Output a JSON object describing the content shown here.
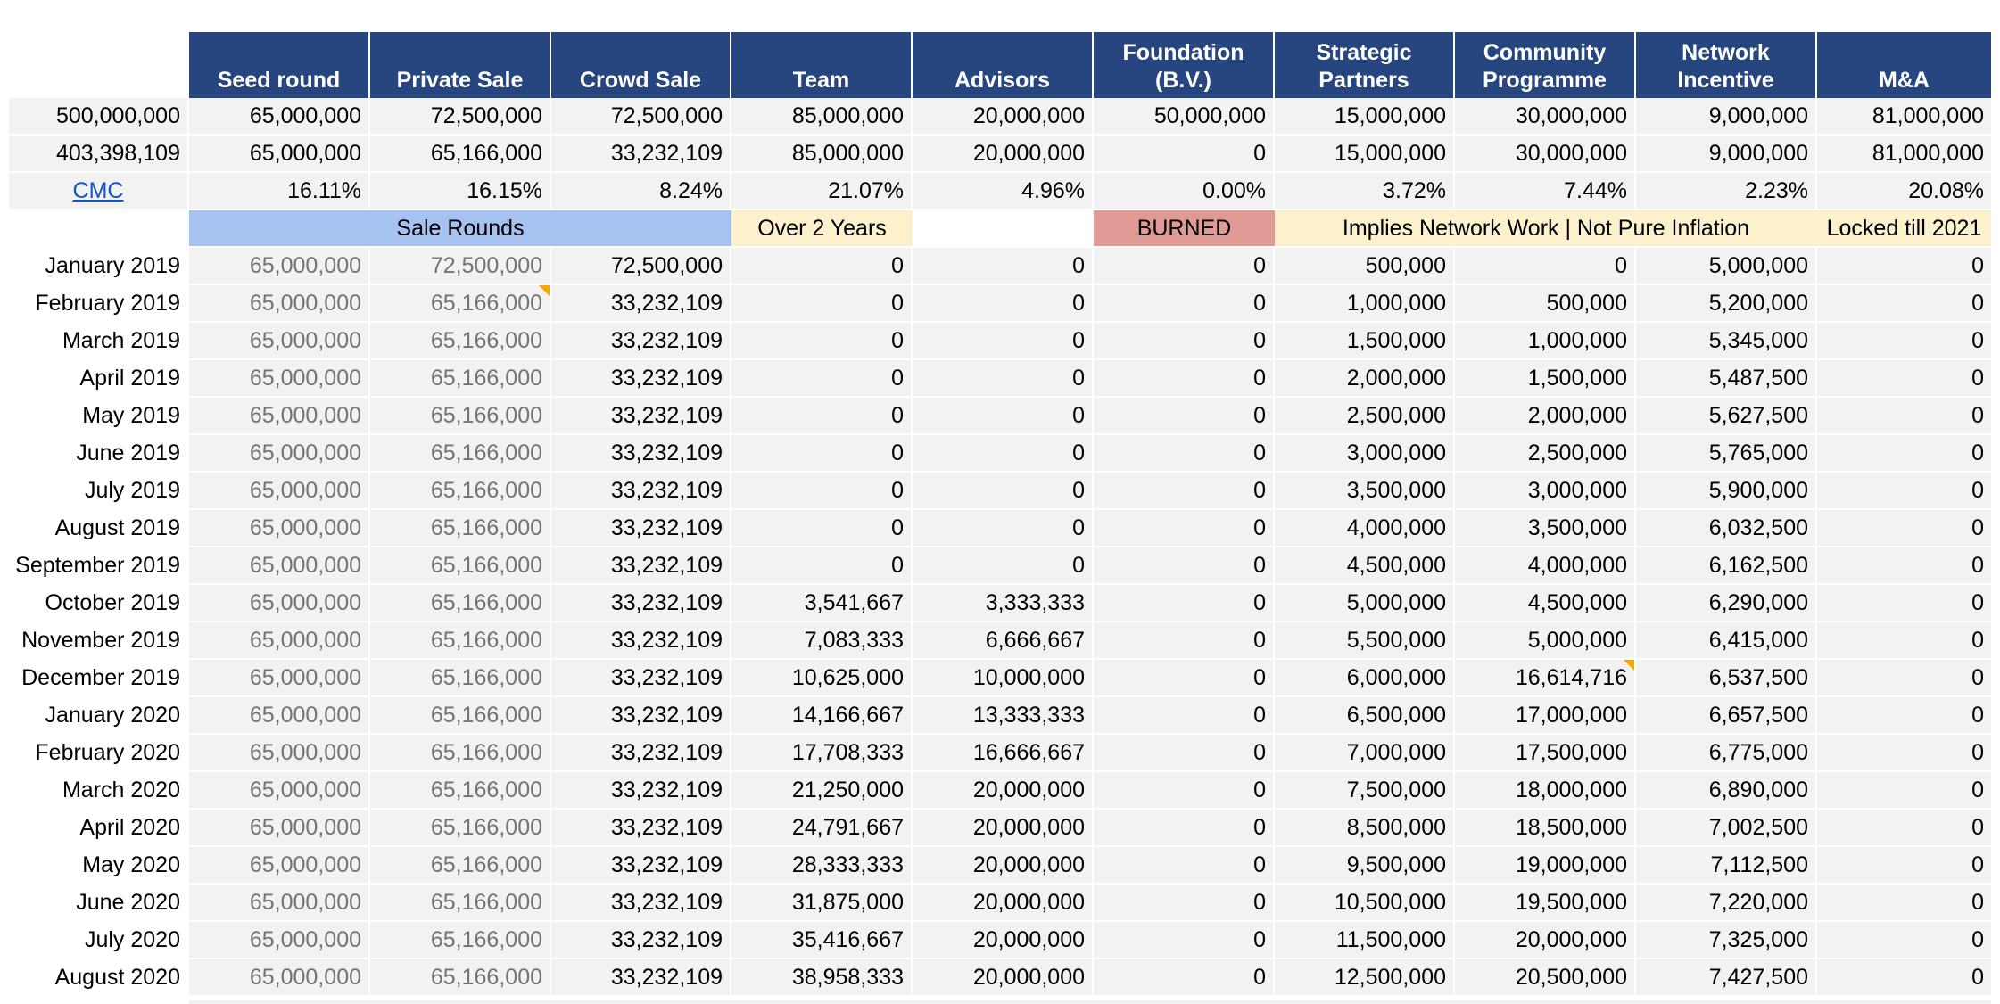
{
  "headers": [
    {
      "lines": [
        "Seed round"
      ]
    },
    {
      "lines": [
        "Private Sale"
      ]
    },
    {
      "lines": [
        "Crowd Sale"
      ]
    },
    {
      "lines": [
        "Team"
      ]
    },
    {
      "lines": [
        "Advisors"
      ]
    },
    {
      "lines": [
        "Foundation",
        "(B.V.)"
      ]
    },
    {
      "lines": [
        "Strategic",
        "Partners"
      ]
    },
    {
      "lines": [
        "Community",
        "Programme"
      ]
    },
    {
      "lines": [
        "Network",
        "Incentive"
      ]
    },
    {
      "lines": [
        "M&A"
      ]
    }
  ],
  "summary": {
    "row1": {
      "label": "500,000,000",
      "values": [
        "65,000,000",
        "72,500,000",
        "72,500,000",
        "85,000,000",
        "20,000,000",
        "50,000,000",
        "15,000,000",
        "30,000,000",
        "9,000,000",
        "81,000,000"
      ]
    },
    "row2": {
      "label": "403,398,109",
      "values": [
        "65,000,000",
        "65,166,000",
        "33,232,109",
        "85,000,000",
        "20,000,000",
        "0",
        "15,000,000",
        "30,000,000",
        "9,000,000",
        "81,000,000"
      ]
    },
    "row3": {
      "label": "CMC",
      "values": [
        "16.11%",
        "16.15%",
        "8.24%",
        "21.07%",
        "4.96%",
        "0.00%",
        "3.72%",
        "7.44%",
        "2.23%",
        "20.08%"
      ]
    }
  },
  "bands": {
    "sale_rounds": "Sale Rounds",
    "over_2_years": "Over 2 Years",
    "burned": "BURNED",
    "implies_network": "Implies Network Work | Not Pure Inflation",
    "locked": "Locked till 2021"
  },
  "monthly_rows": [
    {
      "month": "January 2019",
      "values": [
        "65,000,000",
        "72,500,000",
        "72,500,000",
        "0",
        "0",
        "0",
        "500,000",
        "0",
        "5,000,000",
        "0"
      ]
    },
    {
      "month": "February 2019",
      "values": [
        "65,000,000",
        "65,166,000",
        "33,232,109",
        "0",
        "0",
        "0",
        "1,000,000",
        "500,000",
        "5,200,000",
        "0"
      ]
    },
    {
      "month": "March 2019",
      "values": [
        "65,000,000",
        "65,166,000",
        "33,232,109",
        "0",
        "0",
        "0",
        "1,500,000",
        "1,000,000",
        "5,345,000",
        "0"
      ]
    },
    {
      "month": "April 2019",
      "values": [
        "65,000,000",
        "65,166,000",
        "33,232,109",
        "0",
        "0",
        "0",
        "2,000,000",
        "1,500,000",
        "5,487,500",
        "0"
      ]
    },
    {
      "month": "May 2019",
      "values": [
        "65,000,000",
        "65,166,000",
        "33,232,109",
        "0",
        "0",
        "0",
        "2,500,000",
        "2,000,000",
        "5,627,500",
        "0"
      ]
    },
    {
      "month": "June 2019",
      "values": [
        "65,000,000",
        "65,166,000",
        "33,232,109",
        "0",
        "0",
        "0",
        "3,000,000",
        "2,500,000",
        "5,765,000",
        "0"
      ]
    },
    {
      "month": "July 2019",
      "values": [
        "65,000,000",
        "65,166,000",
        "33,232,109",
        "0",
        "0",
        "0",
        "3,500,000",
        "3,000,000",
        "5,900,000",
        "0"
      ]
    },
    {
      "month": "August 2019",
      "values": [
        "65,000,000",
        "65,166,000",
        "33,232,109",
        "0",
        "0",
        "0",
        "4,000,000",
        "3,500,000",
        "6,032,500",
        "0"
      ]
    },
    {
      "month": "September 2019",
      "values": [
        "65,000,000",
        "65,166,000",
        "33,232,109",
        "0",
        "0",
        "0",
        "4,500,000",
        "4,000,000",
        "6,162,500",
        "0"
      ]
    },
    {
      "month": "October 2019",
      "values": [
        "65,000,000",
        "65,166,000",
        "33,232,109",
        "3,541,667",
        "3,333,333",
        "0",
        "5,000,000",
        "4,500,000",
        "6,290,000",
        "0"
      ]
    },
    {
      "month": "November 2019",
      "values": [
        "65,000,000",
        "65,166,000",
        "33,232,109",
        "7,083,333",
        "6,666,667",
        "0",
        "5,500,000",
        "5,000,000",
        "6,415,000",
        "0"
      ]
    },
    {
      "month": "December 2019",
      "values": [
        "65,000,000",
        "65,166,000",
        "33,232,109",
        "10,625,000",
        "10,000,000",
        "0",
        "6,000,000",
        "16,614,716",
        "6,537,500",
        "0"
      ]
    },
    {
      "month": "January 2020",
      "values": [
        "65,000,000",
        "65,166,000",
        "33,232,109",
        "14,166,667",
        "13,333,333",
        "0",
        "6,500,000",
        "17,000,000",
        "6,657,500",
        "0"
      ]
    },
    {
      "month": "February 2020",
      "values": [
        "65,000,000",
        "65,166,000",
        "33,232,109",
        "17,708,333",
        "16,666,667",
        "0",
        "7,000,000",
        "17,500,000",
        "6,775,000",
        "0"
      ]
    },
    {
      "month": "March 2020",
      "values": [
        "65,000,000",
        "65,166,000",
        "33,232,109",
        "21,250,000",
        "20,000,000",
        "0",
        "7,500,000",
        "18,000,000",
        "6,890,000",
        "0"
      ]
    },
    {
      "month": "April 2020",
      "values": [
        "65,000,000",
        "65,166,000",
        "33,232,109",
        "24,791,667",
        "20,000,000",
        "0",
        "8,500,000",
        "18,500,000",
        "7,002,500",
        "0"
      ]
    },
    {
      "month": "May 2020",
      "values": [
        "65,000,000",
        "65,166,000",
        "33,232,109",
        "28,333,333",
        "20,000,000",
        "0",
        "9,500,000",
        "19,000,000",
        "7,112,500",
        "0"
      ]
    },
    {
      "month": "June 2020",
      "values": [
        "65,000,000",
        "65,166,000",
        "33,232,109",
        "31,875,000",
        "20,000,000",
        "0",
        "10,500,000",
        "19,500,000",
        "7,220,000",
        "0"
      ]
    },
    {
      "month": "July 2020",
      "values": [
        "65,000,000",
        "65,166,000",
        "33,232,109",
        "35,416,667",
        "20,000,000",
        "0",
        "11,500,000",
        "20,000,000",
        "7,325,000",
        "0"
      ]
    },
    {
      "month": "August 2020",
      "values": [
        "65,000,000",
        "65,166,000",
        "33,232,109",
        "38,958,333",
        "20,000,000",
        "0",
        "12,500,000",
        "20,500,000",
        "7,427,500",
        "0"
      ]
    }
  ]
}
